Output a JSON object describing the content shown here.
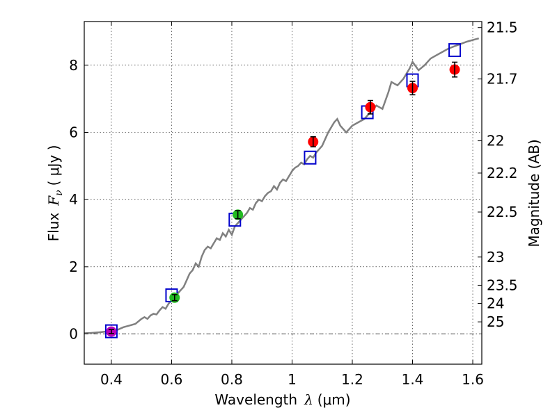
{
  "chart_data": {
    "type": "scatter",
    "title": "",
    "xlabel_text": "Wavelength",
    "xlabel_symbol": "λ",
    "xlabel_unit": "(μm)",
    "ylabel_text": "Flux",
    "ylabel_symbol": "F",
    "ylabel_subscript": "ν",
    "ylabel_unit": "( μJy )",
    "y2label": "Magnitude (AB)",
    "xlim": [
      0.31,
      1.63
    ],
    "ylim": [
      -0.9,
      9.3
    ],
    "grid": true,
    "x_ticks": [
      0.4,
      0.6,
      0.8,
      1.0,
      1.2,
      1.4,
      1.6
    ],
    "x_tick_labels": [
      "0.4",
      "0.6",
      "0.8",
      "1",
      "1.2",
      "1.4",
      "1.6"
    ],
    "y_ticks": [
      0,
      2,
      4,
      6,
      8
    ],
    "y_tick_labels": [
      "0",
      "2",
      "4",
      "6",
      "8"
    ],
    "y2_ticks": [
      {
        "label": "21.5",
        "flux": 9.12
      },
      {
        "label": "21.7",
        "flux": 7.59
      },
      {
        "label": "22",
        "flux": 5.75
      },
      {
        "label": "22.2",
        "flux": 4.79
      },
      {
        "label": "22.5",
        "flux": 3.63
      },
      {
        "label": "23",
        "flux": 2.29
      },
      {
        "label": "23.5",
        "flux": 1.45
      },
      {
        "label": "24",
        "flux": 0.91
      },
      {
        "label": "25",
        "flux": 0.36
      }
    ],
    "colors": {
      "sed": "#808080",
      "box": "#0000cc",
      "purple": "#bb00bb",
      "green": "#22bb22",
      "red": "#ff0000",
      "errorbar": "#000000",
      "zeroline": "#000000"
    },
    "sed_curve": [
      [
        0.31,
        0.02
      ],
      [
        0.33,
        0.03
      ],
      [
        0.36,
        0.05
      ],
      [
        0.38,
        0.07
      ],
      [
        0.4,
        0.1
      ],
      [
        0.42,
        0.12
      ],
      [
        0.44,
        0.2
      ],
      [
        0.46,
        0.25
      ],
      [
        0.48,
        0.3
      ],
      [
        0.5,
        0.45
      ],
      [
        0.51,
        0.5
      ],
      [
        0.52,
        0.45
      ],
      [
        0.53,
        0.55
      ],
      [
        0.54,
        0.6
      ],
      [
        0.55,
        0.58
      ],
      [
        0.56,
        0.7
      ],
      [
        0.57,
        0.8
      ],
      [
        0.58,
        0.75
      ],
      [
        0.59,
        0.9
      ],
      [
        0.6,
        1.0
      ],
      [
        0.61,
        1.05
      ],
      [
        0.62,
        1.2
      ],
      [
        0.63,
        1.3
      ],
      [
        0.64,
        1.4
      ],
      [
        0.65,
        1.6
      ],
      [
        0.66,
        1.8
      ],
      [
        0.67,
        1.9
      ],
      [
        0.68,
        2.1
      ],
      [
        0.69,
        2.0
      ],
      [
        0.7,
        2.3
      ],
      [
        0.71,
        2.5
      ],
      [
        0.72,
        2.6
      ],
      [
        0.73,
        2.55
      ],
      [
        0.74,
        2.7
      ],
      [
        0.75,
        2.85
      ],
      [
        0.76,
        2.8
      ],
      [
        0.77,
        3.0
      ],
      [
        0.78,
        2.9
      ],
      [
        0.79,
        3.1
      ],
      [
        0.8,
        2.95
      ],
      [
        0.81,
        3.2
      ],
      [
        0.82,
        3.3
      ],
      [
        0.83,
        3.4
      ],
      [
        0.84,
        3.5
      ],
      [
        0.85,
        3.6
      ],
      [
        0.86,
        3.75
      ],
      [
        0.87,
        3.7
      ],
      [
        0.88,
        3.9
      ],
      [
        0.89,
        4.0
      ],
      [
        0.9,
        3.95
      ],
      [
        0.91,
        4.1
      ],
      [
        0.92,
        4.2
      ],
      [
        0.93,
        4.25
      ],
      [
        0.94,
        4.4
      ],
      [
        0.95,
        4.3
      ],
      [
        0.96,
        4.5
      ],
      [
        0.97,
        4.6
      ],
      [
        0.98,
        4.55
      ],
      [
        0.99,
        4.7
      ],
      [
        1.0,
        4.85
      ],
      [
        1.01,
        4.95
      ],
      [
        1.02,
        5.0
      ],
      [
        1.03,
        5.1
      ],
      [
        1.04,
        5.05
      ],
      [
        1.05,
        5.2
      ],
      [
        1.06,
        5.3
      ],
      [
        1.07,
        5.25
      ],
      [
        1.08,
        5.4
      ],
      [
        1.1,
        5.6
      ],
      [
        1.12,
        6.0
      ],
      [
        1.14,
        6.3
      ],
      [
        1.15,
        6.4
      ],
      [
        1.16,
        6.2
      ],
      [
        1.18,
        6.0
      ],
      [
        1.2,
        6.2
      ],
      [
        1.22,
        6.3
      ],
      [
        1.24,
        6.4
      ],
      [
        1.26,
        6.6
      ],
      [
        1.28,
        6.8
      ],
      [
        1.3,
        6.7
      ],
      [
        1.32,
        7.2
      ],
      [
        1.33,
        7.5
      ],
      [
        1.35,
        7.4
      ],
      [
        1.37,
        7.6
      ],
      [
        1.39,
        7.9
      ],
      [
        1.4,
        8.1
      ],
      [
        1.42,
        7.85
      ],
      [
        1.44,
        8.0
      ],
      [
        1.46,
        8.2
      ],
      [
        1.48,
        8.3
      ],
      [
        1.5,
        8.4
      ],
      [
        1.52,
        8.5
      ],
      [
        1.55,
        8.6
      ],
      [
        1.58,
        8.7
      ],
      [
        1.6,
        8.75
      ],
      [
        1.62,
        8.8
      ]
    ],
    "model_photometry": [
      {
        "x": 0.4,
        "y": 0.08
      },
      {
        "x": 0.6,
        "y": 1.15
      },
      {
        "x": 0.81,
        "y": 3.4
      },
      {
        "x": 1.06,
        "y": 5.25
      },
      {
        "x": 1.25,
        "y": 6.6
      },
      {
        "x": 1.4,
        "y": 7.55
      },
      {
        "x": 1.54,
        "y": 8.45
      }
    ],
    "observed_points": [
      {
        "x": 0.4,
        "y": 0.07,
        "err": 0.06,
        "color": "purple"
      },
      {
        "x": 0.61,
        "y": 1.08,
        "err": 0.09,
        "color": "green"
      },
      {
        "x": 0.82,
        "y": 3.55,
        "err": 0.12,
        "color": "green"
      },
      {
        "x": 1.07,
        "y": 5.72,
        "err": 0.15,
        "color": "red"
      },
      {
        "x": 1.26,
        "y": 6.75,
        "err": 0.2,
        "color": "red"
      },
      {
        "x": 1.4,
        "y": 7.32,
        "err": 0.2,
        "color": "red"
      },
      {
        "x": 1.54,
        "y": 7.87,
        "err": 0.22,
        "color": "red"
      }
    ]
  }
}
